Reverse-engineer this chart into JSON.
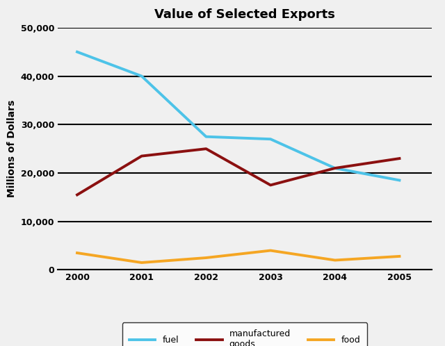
{
  "title": "Value of Selected Exports",
  "xlabel": "",
  "ylabel": "Millions of Dollars",
  "years": [
    2000,
    2001,
    2002,
    2003,
    2004,
    2005
  ],
  "fuel": [
    45000,
    40000,
    27500,
    27000,
    21000,
    18500
  ],
  "manufactured_goods": [
    15500,
    23500,
    25000,
    17500,
    21000,
    23000
  ],
  "food": [
    3500,
    1500,
    2500,
    4000,
    2000,
    2800
  ],
  "fuel_color": "#4DC3E8",
  "manufactured_color": "#8B1010",
  "food_color": "#F5A623",
  "ylim": [
    0,
    50000
  ],
  "yticks": [
    0,
    10000,
    20000,
    30000,
    40000,
    50000
  ],
  "bg_color": "#F0F0F0",
  "plot_bg_color": "#F0F0F0",
  "title_fontsize": 13,
  "ylabel_fontsize": 10,
  "tick_fontsize": 9,
  "legend_labels": [
    "fuel",
    "manufactured\ngoods",
    "food"
  ],
  "linewidth": 2.8
}
